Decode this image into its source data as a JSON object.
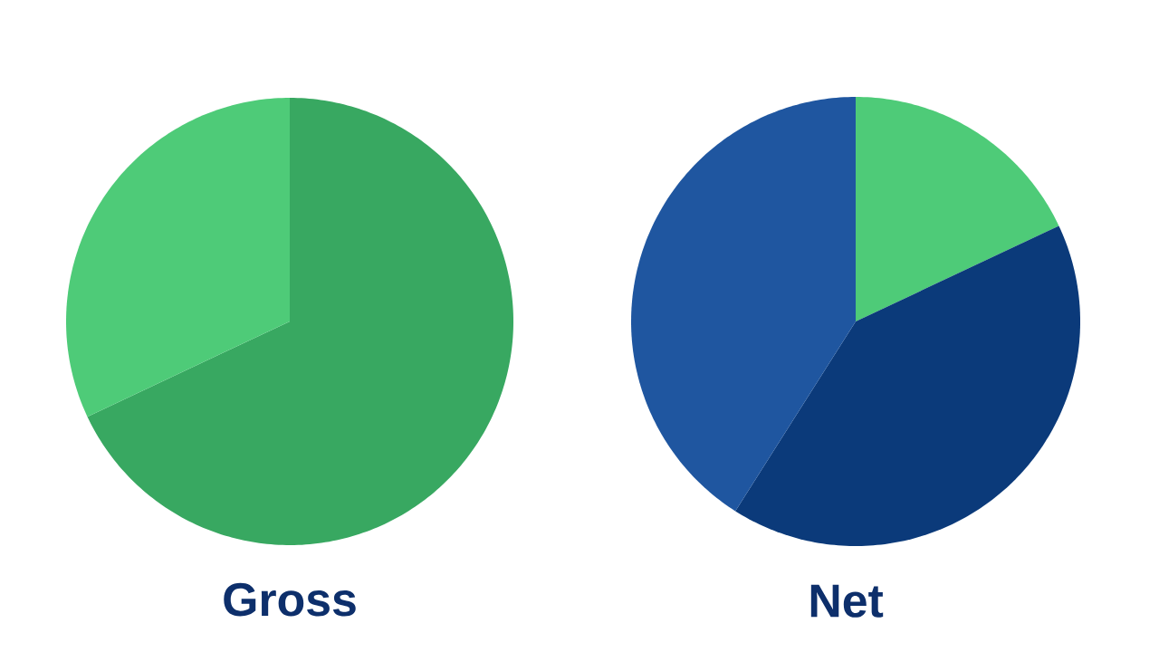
{
  "chart_data": [
    {
      "type": "pie",
      "title": "Gross",
      "categories": [
        null,
        null
      ],
      "values": [
        68,
        32
      ],
      "colors": [
        "#38a861",
        "#4ecb78"
      ]
    },
    {
      "type": "pie",
      "title": "Net",
      "categories": [
        null,
        null,
        null
      ],
      "values": [
        18,
        41,
        41
      ],
      "colors": [
        "#4ecb78",
        "#0b3a7a",
        "#1f56a0"
      ]
    }
  ]
}
